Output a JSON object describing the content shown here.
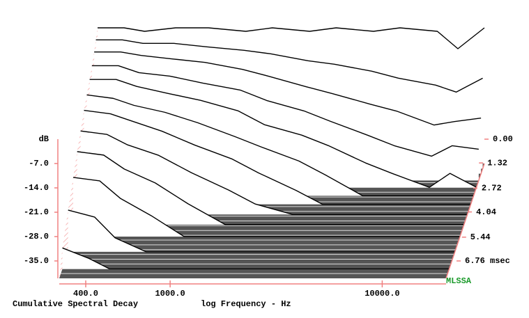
{
  "chart_data": {
    "type": "waterfall",
    "title": "Cumulative Spectral Decay",
    "x_label": "log Frequency - Hz",
    "y_label": "dB",
    "watermark": "MLSSA",
    "log_x": true,
    "xlim": [
      300,
      20000
    ],
    "xticks": [
      {
        "value": 400,
        "label": "400.0"
      },
      {
        "value": 1000,
        "label": "1000.0"
      },
      {
        "value": 10000,
        "label": "10000.0"
      }
    ],
    "ylim": [
      -40,
      0
    ],
    "yticks": [
      {
        "value": -7,
        "label": "-7.0"
      },
      {
        "value": -14,
        "label": "-14.0"
      },
      {
        "value": -21,
        "label": "-21.0"
      },
      {
        "value": -28,
        "label": "-28.0"
      },
      {
        "value": -35,
        "label": "-35.0"
      }
    ],
    "zlim": [
      0,
      6.76
    ],
    "zticks": [
      {
        "value": 0,
        "label": "0.00"
      },
      1.32,
      2.72,
      4.04,
      5.44,
      {
        "value": 6.76,
        "label": "6.76 msec"
      }
    ],
    "x": [
      300,
      400,
      500,
      700,
      1000,
      1500,
      2000,
      3000,
      4000,
      6000,
      8000,
      12000,
      15000,
      20000
    ],
    "slices": [
      {
        "time": 0,
        "values": [
          -1,
          -1,
          -2,
          -1,
          -1,
          -2,
          -1,
          -2,
          -1,
          -2,
          -1,
          -2,
          -7,
          -1
        ]
      },
      {
        "time": 0.3,
        "values": [
          -3,
          -3,
          -4,
          -4,
          -5,
          -6,
          -7,
          -9,
          -10,
          -12,
          -14,
          -16,
          -18,
          -14
        ]
      },
      {
        "time": 0.6,
        "values": [
          -5,
          -5,
          -6,
          -7,
          -8,
          -10,
          -12,
          -15,
          -17,
          -20,
          -22,
          -26,
          -25,
          -24
        ]
      },
      {
        "time": 1.0,
        "values": [
          -7,
          -7,
          -9,
          -10,
          -12,
          -14,
          -17,
          -20,
          -23,
          -27,
          -30,
          -33,
          -30,
          -31
        ]
      },
      {
        "time": 1.4,
        "values": [
          -9,
          -9,
          -11,
          -13,
          -15,
          -18,
          -22,
          -25,
          -28,
          -33,
          -36,
          -40,
          -36,
          -40
        ]
      },
      {
        "time": 1.9,
        "values": [
          -11,
          -12,
          -14,
          -16,
          -19,
          -23,
          -26,
          -30,
          -34,
          -40,
          -40,
          -40,
          -40,
          -40
        ]
      },
      {
        "time": 2.4,
        "values": [
          -13,
          -14,
          -16,
          -19,
          -23,
          -27,
          -31,
          -36,
          -40,
          -40,
          -40,
          -40,
          -40,
          -40
        ]
      },
      {
        "time": 3.0,
        "values": [
          -16,
          -17,
          -20,
          -23,
          -28,
          -33,
          -37,
          -40,
          -40,
          -40,
          -40,
          -40,
          -40,
          -40
        ]
      },
      {
        "time": 3.6,
        "values": [
          -19,
          -20,
          -24,
          -28,
          -34,
          -40,
          -40,
          -40,
          -40,
          -40,
          -40,
          -40,
          -40,
          -40
        ]
      },
      {
        "time": 4.3,
        "values": [
          -23,
          -24,
          -29,
          -34,
          -40,
          -40,
          -40,
          -40,
          -40,
          -40,
          -40,
          -40,
          -40,
          -40
        ]
      },
      {
        "time": 5.2,
        "values": [
          -28,
          -30,
          -36,
          -40,
          -40,
          -40,
          -40,
          -40,
          -40,
          -40,
          -40,
          -40,
          -40,
          -40
        ]
      },
      {
        "time": 6.2,
        "values": [
          -34,
          -37,
          -40,
          -40,
          -40,
          -40,
          -40,
          -40,
          -40,
          -40,
          -40,
          -40,
          -40,
          -40
        ]
      }
    ]
  }
}
